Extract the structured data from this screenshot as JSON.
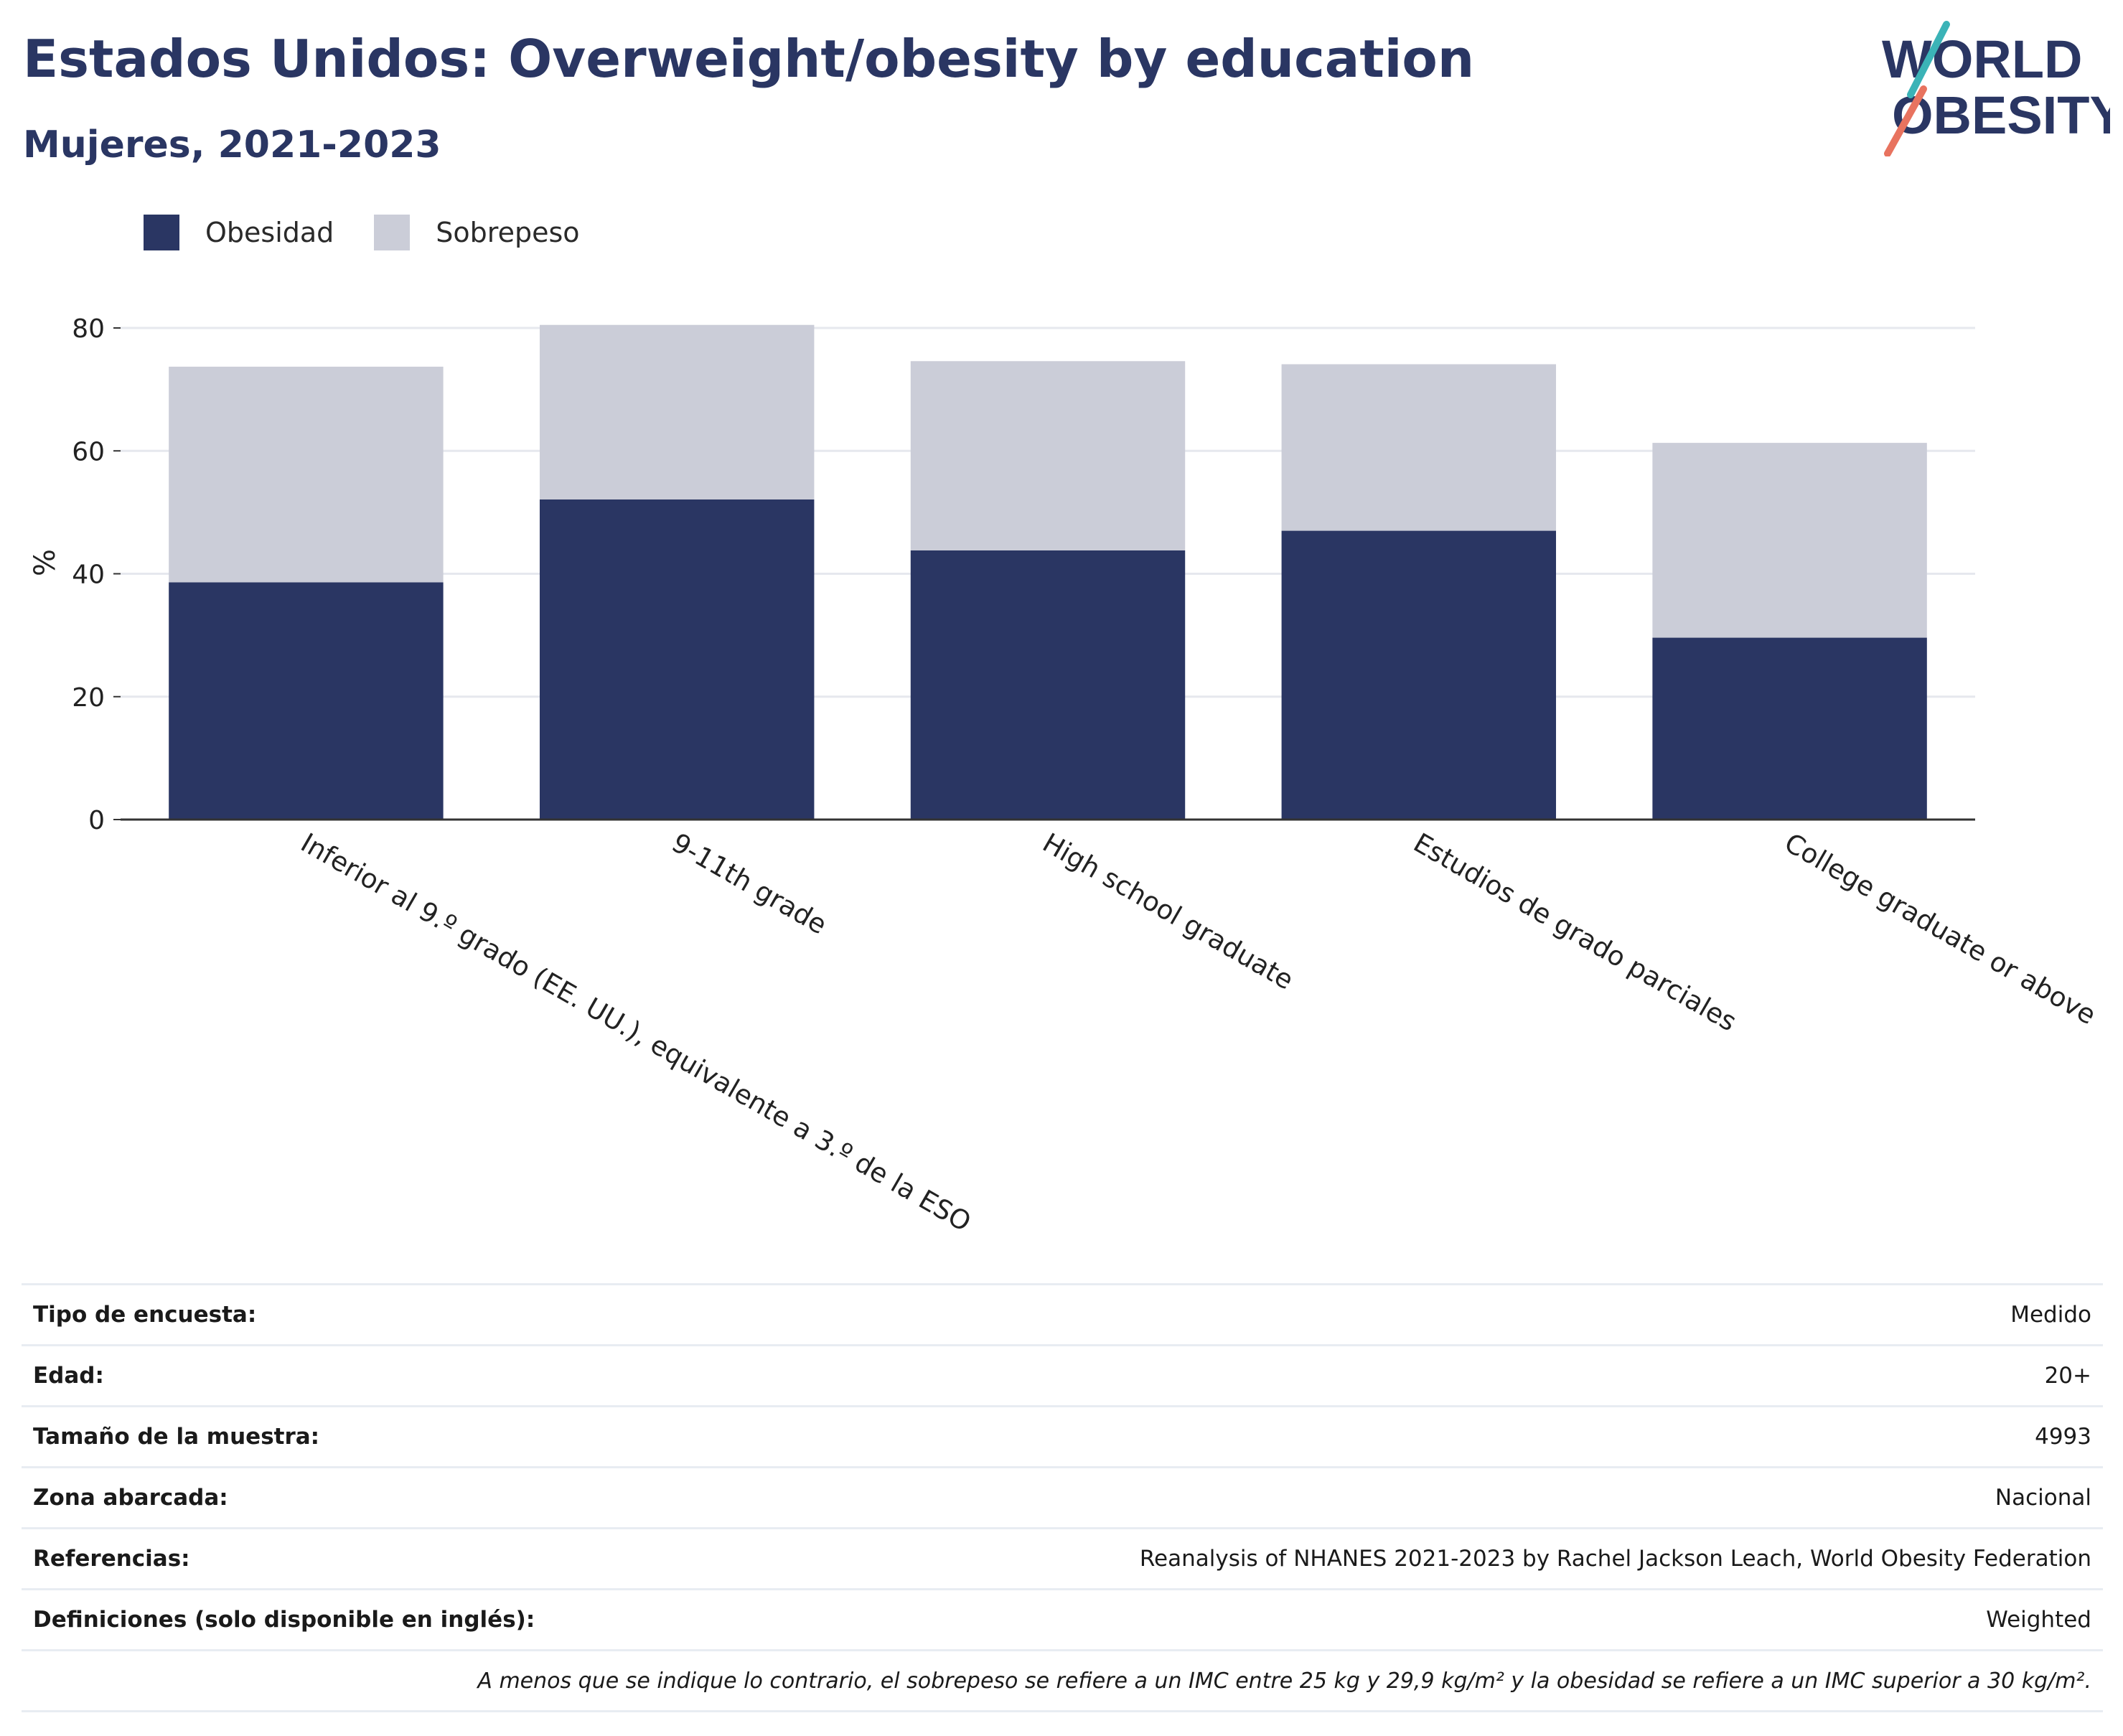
{
  "header": {
    "title": "Estados Unidos: Overweight/obesity by education",
    "subtitle": "Mujeres, 2021-2023"
  },
  "logo": {
    "line1": "WORLD",
    "line2": "OBESITY"
  },
  "legend": {
    "items": [
      {
        "label": "Obesidad",
        "color": "#2a3663"
      },
      {
        "label": "Sobrepeso",
        "color": "#cbcdd8"
      }
    ]
  },
  "chart_data": {
    "type": "bar",
    "stacked": true,
    "categories": [
      "Inferior al 9.º grado (EE. UU.), equivalente a 3.º de la ESO",
      "9-11th grade",
      "High school graduate",
      "Estudios de grado parciales",
      "College graduate or above"
    ],
    "series": [
      {
        "name": "Obesidad",
        "color": "#2a3663",
        "values": [
          38.6,
          52.1,
          43.8,
          47.0,
          29.6
        ]
      },
      {
        "name": "Sobrepeso",
        "color": "#cbcdd8",
        "values": [
          35.1,
          28.4,
          30.8,
          27.1,
          31.7
        ]
      }
    ],
    "ylabel": "%",
    "xlabel": "",
    "ylim": [
      0,
      84
    ],
    "yticks": [
      0,
      20,
      40,
      60,
      80
    ],
    "grid": true,
    "legend_position": "top-left"
  },
  "info": {
    "rows": [
      {
        "key": "Tipo de encuesta:",
        "value": "Medido"
      },
      {
        "key": "Edad:",
        "value": "20+"
      },
      {
        "key": "Tamaño de la muestra:",
        "value": "4993"
      },
      {
        "key": "Zona abarcada:",
        "value": "Nacional"
      },
      {
        "key": "Referencias:",
        "value": "Reanalysis of NHANES 2021-2023 by Rachel Jackson Leach, World Obesity Federation"
      },
      {
        "key": "Definiciones (solo disponible en inglés):",
        "value": "Weighted"
      }
    ],
    "note": "A menos que se indique lo contrario, el sobrepeso se refiere a un IMC entre 25 kg y 29,9 kg/m² y la obesidad se refiere a un IMC superior a 30 kg/m²."
  }
}
